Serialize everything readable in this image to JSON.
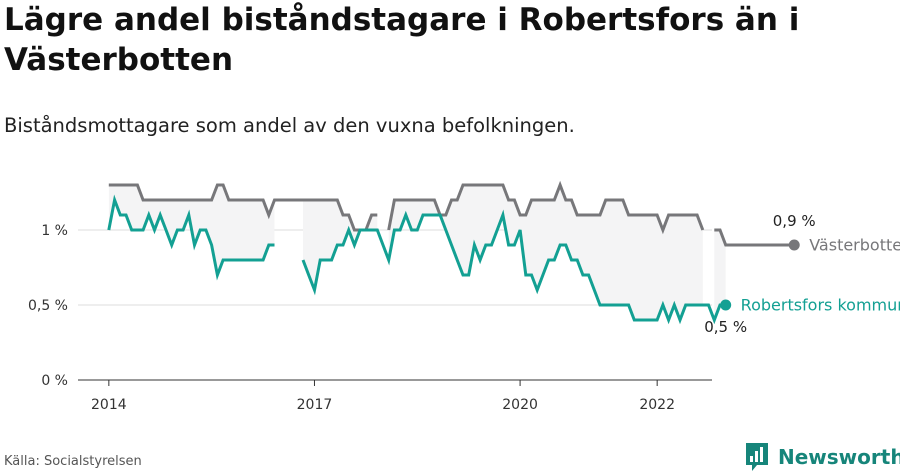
{
  "header": {
    "title": "Lägre andel biståndstagare i Robertsfors än i Västerbotten",
    "subtitle": "Biståndsmottagare som andel av den vuxna befolkningen."
  },
  "footer": {
    "source": "Källa: Socialstyrelsen",
    "brand": "Newsworthy"
  },
  "colors": {
    "county": "#77777a",
    "municipality": "#13a093",
    "band": "#f4f4f5",
    "brand": "#16857a"
  },
  "icons": {
    "brand_logo": "bar-chart-logo-icon"
  },
  "chart_data": {
    "type": "line",
    "title": "Lägre andel biståndstagare i Robertsfors än i Västerbotten",
    "subtitle": "Biståndsmottagare som andel av den vuxna befolkningen.",
    "xlabel": "",
    "ylabel": "",
    "x_ticks": [
      {
        "label": "2014",
        "value": 2014.0
      },
      {
        "label": "2017",
        "value": 2017.0
      },
      {
        "label": "2020",
        "value": 2020.0
      },
      {
        "label": "2022",
        "value": 2022.0
      }
    ],
    "y_ticks": [
      {
        "label": "0 %",
        "value": 0
      },
      {
        "label": "0,5 %",
        "value": 0.5
      },
      {
        "label": "1 %",
        "value": 1.0
      }
    ],
    "xlim": [
      2013.55,
      2022.8
    ],
    "ylim": [
      0,
      1.4
    ],
    "grid": true,
    "legend": "inline-end-labels",
    "x_start": 2014.0,
    "x_step": 0.08333,
    "series": [
      {
        "name": "Västerbottens län",
        "end_label": "0,9 %",
        "color": "#77777a",
        "values": [
          1.3,
          1.3,
          1.3,
          1.3,
          1.3,
          1.3,
          1.2,
          1.2,
          1.2,
          1.2,
          1.2,
          1.2,
          1.2,
          1.2,
          1.2,
          1.2,
          1.2,
          1.2,
          1.2,
          1.3,
          1.3,
          1.2,
          1.2,
          1.2,
          1.2,
          1.2,
          1.2,
          1.2,
          1.1,
          1.2,
          1.2,
          1.2,
          1.2,
          1.2,
          1.2,
          1.2,
          1.2,
          1.2,
          1.2,
          1.2,
          1.2,
          1.1,
          1.1,
          1.0,
          1.0,
          1.0,
          1.1,
          1.1,
          null,
          1.0,
          1.2,
          1.2,
          1.2,
          1.2,
          1.2,
          1.2,
          1.2,
          1.2,
          1.1,
          1.1,
          1.2,
          1.2,
          1.3,
          1.3,
          1.3,
          1.3,
          1.3,
          1.3,
          1.3,
          1.3,
          1.2,
          1.2,
          1.1,
          1.1,
          1.2,
          1.2,
          1.2,
          1.2,
          1.2,
          1.3,
          1.2,
          1.2,
          1.1,
          1.1,
          1.1,
          1.1,
          1.1,
          1.2,
          1.2,
          1.2,
          1.2,
          1.1,
          1.1,
          1.1,
          1.1,
          1.1,
          1.1,
          1.0,
          1.1,
          1.1,
          1.1,
          1.1,
          1.1,
          1.1,
          1.0,
          null,
          1.0,
          1.0,
          0.9,
          0.9,
          0.9,
          0.9,
          0.9,
          0.9,
          0.9,
          0.9,
          0.9,
          0.9,
          0.9,
          0.9,
          0.9
        ]
      },
      {
        "name": "Robertsfors kommun",
        "end_label": "0,5 %",
        "color": "#13a093",
        "values": [
          1.0,
          1.2,
          1.1,
          1.1,
          1.0,
          1.0,
          1.0,
          1.1,
          1.0,
          1.1,
          1.0,
          0.9,
          1.0,
          1.0,
          1.1,
          0.9,
          1.0,
          1.0,
          0.9,
          0.7,
          0.8,
          0.8,
          0.8,
          0.8,
          0.8,
          0.8,
          0.8,
          0.8,
          0.9,
          0.9,
          null,
          null,
          null,
          null,
          0.8,
          0.7,
          0.6,
          0.8,
          0.8,
          0.8,
          0.9,
          0.9,
          1.0,
          0.9,
          1.0,
          1.0,
          1.0,
          1.0,
          0.9,
          0.8,
          1.0,
          1.0,
          1.1,
          1.0,
          1.0,
          1.1,
          1.1,
          1.1,
          1.1,
          1.0,
          0.9,
          0.8,
          0.7,
          0.7,
          0.9,
          0.8,
          0.9,
          0.9,
          1.0,
          1.1,
          0.9,
          0.9,
          1.0,
          0.7,
          0.7,
          0.6,
          0.7,
          0.8,
          0.8,
          0.9,
          0.9,
          0.8,
          0.8,
          0.7,
          0.7,
          0.6,
          0.5,
          0.5,
          0.5,
          0.5,
          0.5,
          0.5,
          0.4,
          0.4,
          0.4,
          0.4,
          0.4,
          0.5,
          0.4,
          0.5,
          0.4,
          0.5,
          0.5,
          0.5,
          0.5,
          0.5,
          0.4,
          0.5,
          0.5
        ]
      }
    ]
  }
}
